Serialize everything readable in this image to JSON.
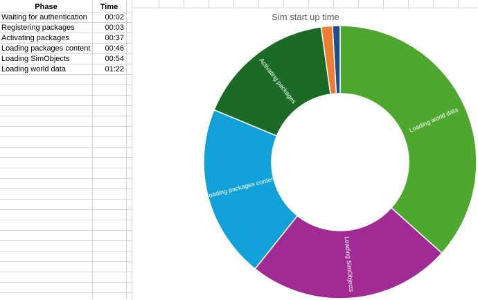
{
  "table": {
    "headers": {
      "phase": "Phase",
      "time": "Time"
    },
    "rows": [
      {
        "phase": "Waiting for authentication",
        "time": "00:02"
      },
      {
        "phase": "Registering packages",
        "time": "00:03"
      },
      {
        "phase": "Activating packages",
        "time": "00:37"
      },
      {
        "phase": "Loading packages content",
        "time": "00:46"
      },
      {
        "phase": "Loading SimObjects",
        "time": "00:54"
      },
      {
        "phase": "Loading world data",
        "time": "01:22"
      }
    ]
  },
  "chart_data": {
    "type": "pie",
    "title": "Sim start up time",
    "categories": [
      "Waiting for authentication",
      "Registering packages",
      "Activating packages",
      "Loading packages content",
      "Loading SimObjects",
      "Loading world data"
    ],
    "values": [
      2,
      3,
      37,
      46,
      54,
      82
    ],
    "colors": [
      "#1f4e8c",
      "#ed7d31",
      "#1b6b27",
      "#12a0d8",
      "#a02b93",
      "#4ea72e"
    ],
    "data_labels": [
      "",
      "",
      "Activating packages",
      "Loading packages content",
      "Loading SimObjects",
      "Loading world data"
    ],
    "donut": true
  }
}
